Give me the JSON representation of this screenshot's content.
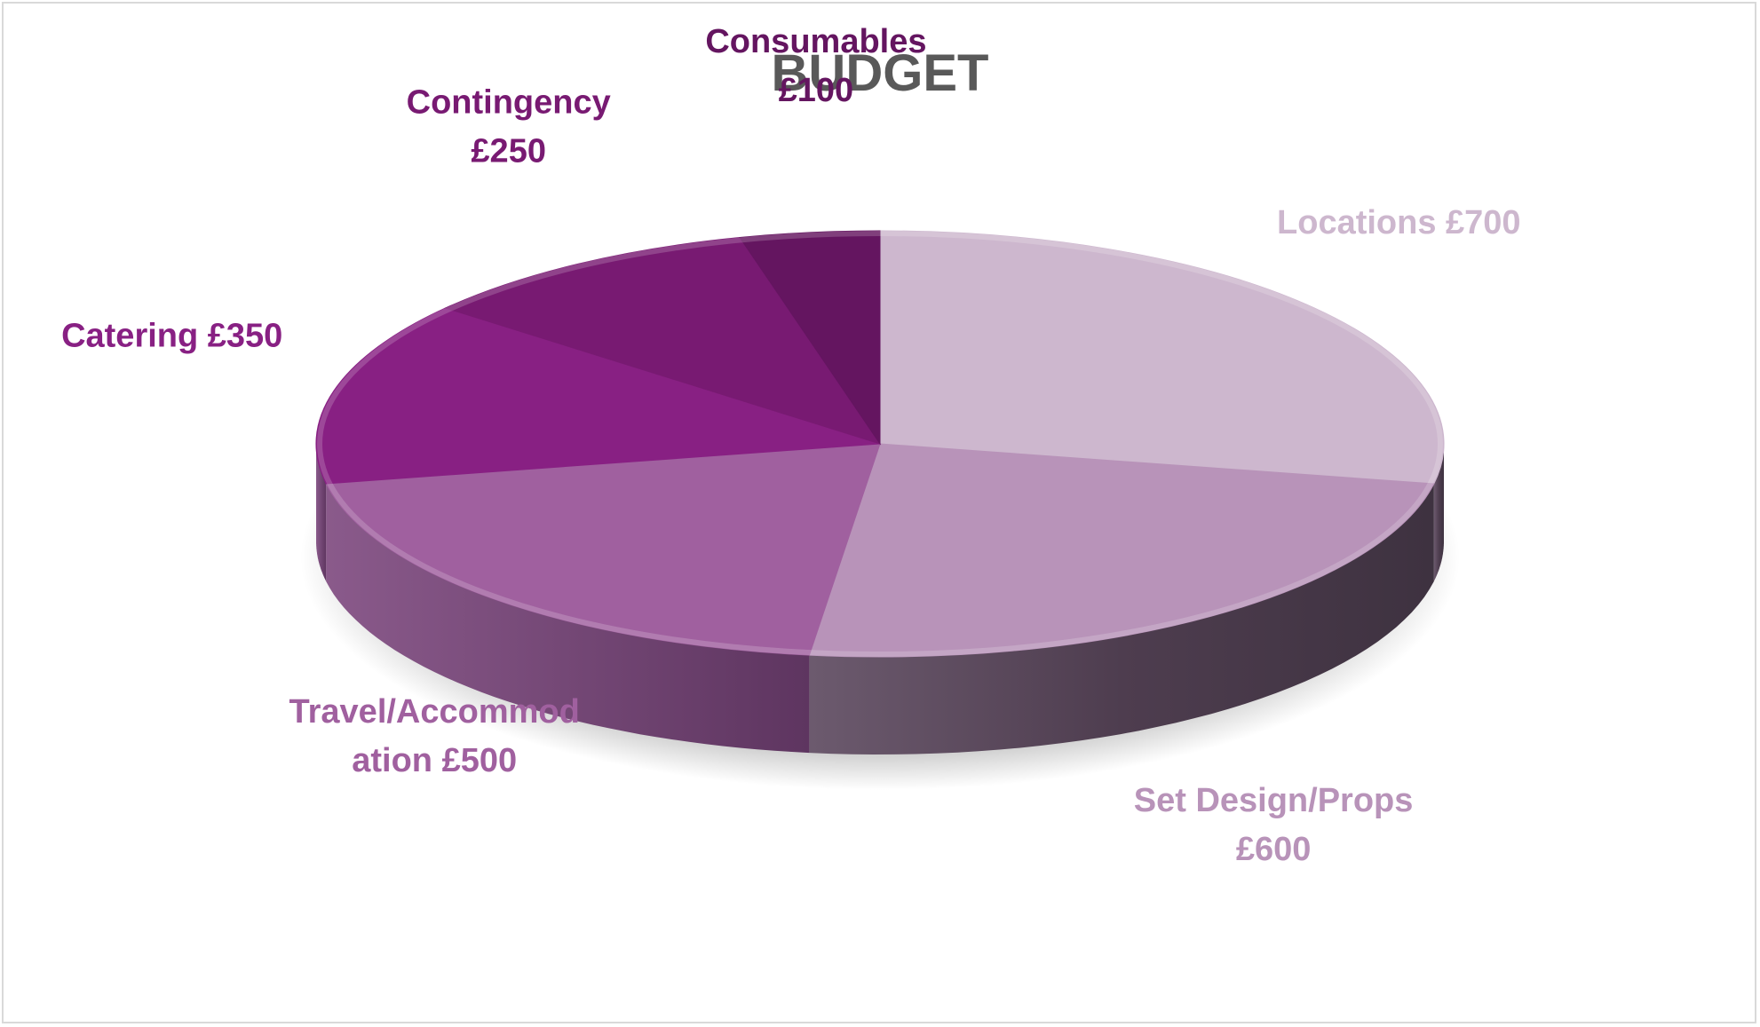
{
  "chart_data": {
    "type": "pie",
    "title": "BUDGET",
    "categories": [
      "Locations",
      "Set Design/Props",
      "Travel/Accommodation",
      "Catering",
      "Contingency",
      "Consumables"
    ],
    "values": [
      700,
      600,
      500,
      350,
      250,
      100
    ],
    "currency": "£",
    "labels": [
      {
        "lines": [
          "Locations  £700"
        ],
        "color": "#cdb7ce"
      },
      {
        "lines": [
          "Set Design/Props",
          "£600"
        ],
        "color": "#b893b9"
      },
      {
        "lines": [
          "Travel/Accommod",
          "ation  £500"
        ],
        "color": "#a0609f"
      },
      {
        "lines": [
          "Catering  £350"
        ],
        "color": "#882083"
      },
      {
        "lines": [
          "Contingency",
          "£250"
        ],
        "color": "#781a72"
      },
      {
        "lines": [
          "Consumables",
          "£100"
        ],
        "color": "#641560"
      }
    ],
    "colors": [
      "#cdb7ce",
      "#b893b9",
      "#a0609f",
      "#882083",
      "#781a72",
      "#641560"
    ],
    "style": "3d-pie"
  }
}
